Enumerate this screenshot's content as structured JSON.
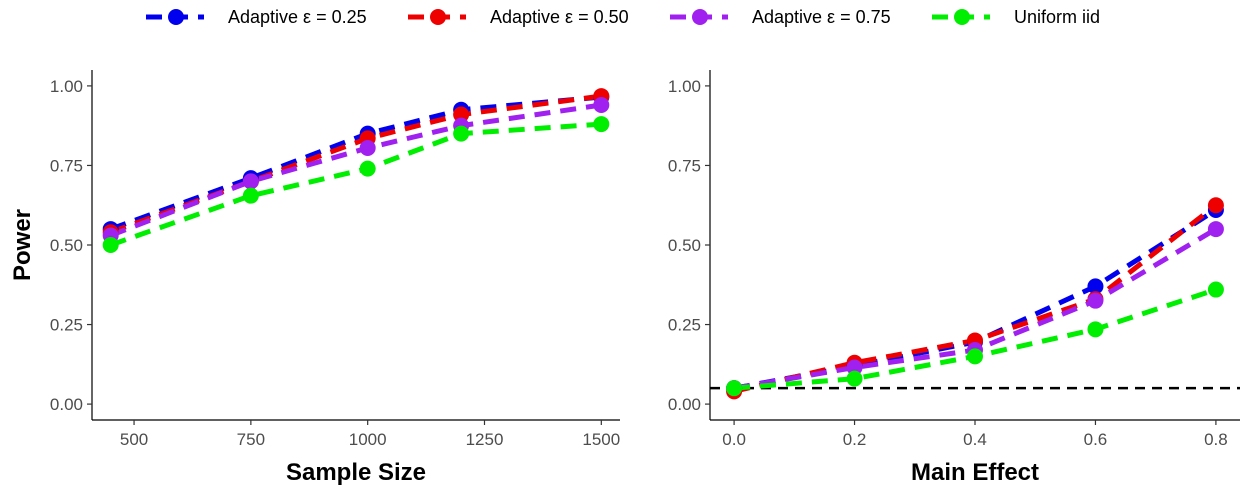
{
  "legend": {
    "entries": [
      {
        "label": "Adaptive ε = 0.25",
        "color": "#0000ee"
      },
      {
        "label": "Adaptive ε = 0.50",
        "color": "#ee0000"
      },
      {
        "label": "Adaptive ε = 0.75",
        "color": "#a020f0"
      },
      {
        "label": "Uniform iid",
        "color": "#00ee00"
      }
    ]
  },
  "chart_data": [
    {
      "type": "line",
      "title": "",
      "xlabel": "Sample Size",
      "ylabel": "Power",
      "xlim": [
        410,
        1540
      ],
      "ylim": [
        -0.05,
        1.05
      ],
      "xticks": [
        500,
        750,
        1000,
        1250,
        1500
      ],
      "yticks": [
        0.0,
        0.25,
        0.5,
        0.75,
        1.0
      ],
      "xtick_labels": [
        "500",
        "750",
        "1000",
        "1250",
        "1500"
      ],
      "ytick_labels": [
        "0.00",
        "0.25",
        "0.50",
        "0.75",
        "1.00"
      ],
      "x": [
        450,
        750,
        1000,
        1200,
        1500
      ],
      "series": [
        {
          "name": "Adaptive ε = 0.25",
          "color": "#0000ee",
          "values": [
            0.55,
            0.71,
            0.85,
            0.925,
            0.965
          ]
        },
        {
          "name": "Adaptive ε = 0.50",
          "color": "#ee0000",
          "values": [
            0.54,
            0.7,
            0.835,
            0.91,
            0.968
          ]
        },
        {
          "name": "Adaptive ε = 0.75",
          "color": "#a020f0",
          "values": [
            0.53,
            0.7,
            0.805,
            0.875,
            0.94
          ]
        },
        {
          "name": "Uniform iid",
          "color": "#00ee00",
          "values": [
            0.5,
            0.655,
            0.74,
            0.85,
            0.88
          ]
        }
      ],
      "reference_line": null,
      "grid": false
    },
    {
      "type": "line",
      "title": "",
      "xlabel": "Main Effect",
      "ylabel": "",
      "xlim": [
        -0.04,
        0.84
      ],
      "ylim": [
        -0.05,
        1.05
      ],
      "xticks": [
        0.0,
        0.2,
        0.4,
        0.6,
        0.8
      ],
      "yticks": [
        0.0,
        0.25,
        0.5,
        0.75,
        1.0
      ],
      "xtick_labels": [
        "0.0",
        "0.2",
        "0.4",
        "0.6",
        "0.8"
      ],
      "ytick_labels": [
        "0.00",
        "0.25",
        "0.50",
        "0.75",
        "1.00"
      ],
      "x": [
        0.0,
        0.2,
        0.4,
        0.6,
        0.8
      ],
      "series": [
        {
          "name": "Adaptive ε = 0.25",
          "color": "#0000ee",
          "values": [
            0.05,
            0.12,
            0.195,
            0.37,
            0.61
          ]
        },
        {
          "name": "Adaptive ε = 0.50",
          "color": "#ee0000",
          "values": [
            0.04,
            0.13,
            0.2,
            0.33,
            0.625
          ]
        },
        {
          "name": "Adaptive ε = 0.75",
          "color": "#a020f0",
          "values": [
            0.05,
            0.115,
            0.17,
            0.325,
            0.55
          ]
        },
        {
          "name": "Uniform iid",
          "color": "#00ee00",
          "values": [
            0.05,
            0.08,
            0.15,
            0.235,
            0.36
          ]
        }
      ],
      "reference_line": {
        "y": 0.05,
        "color": "#000000",
        "style": "dashed"
      },
      "grid": false
    }
  ]
}
